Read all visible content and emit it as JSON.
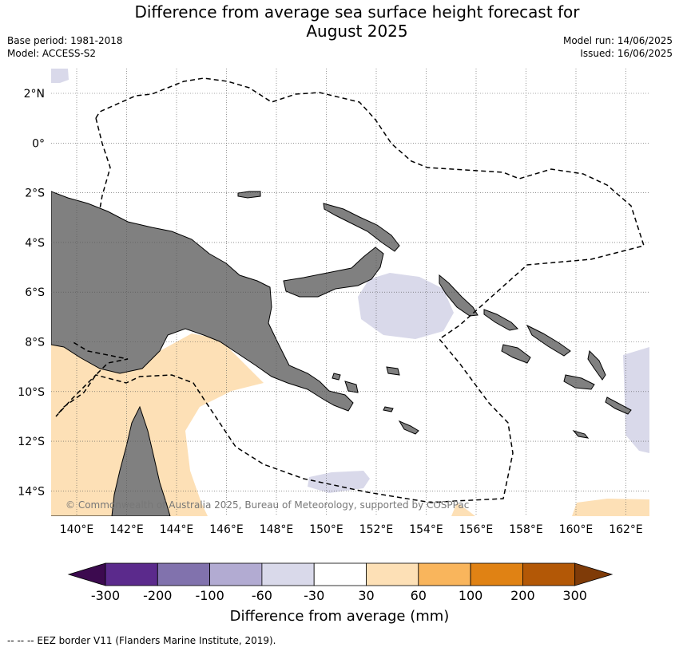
{
  "title_line1": "Difference from average sea surface height forecast for",
  "title_line2": "August 2025",
  "base_period": "Base period: 1981-2018",
  "model": "Model: ACCESS-S2",
  "model_run": "Model run: 14/06/2025",
  "issued": "Issued: 16/06/2025",
  "copyright": "© Commonwealth of Australia 2025, Bureau of Meteorology, supported by COSPPac",
  "footnote": "-- -- -- EEZ border V11 (Flanders Marine Institute, 2019).",
  "lat_labels": [
    "2°N",
    "0°",
    "2°S",
    "4°S",
    "6°S",
    "8°S",
    "10°S",
    "12°S",
    "14°S"
  ],
  "lon_labels": [
    "140°E",
    "142°E",
    "144°E",
    "146°E",
    "148°E",
    "150°E",
    "152°E",
    "154°E",
    "156°E",
    "158°E",
    "160°E",
    "162°E"
  ],
  "colorbar": {
    "title": "Difference from average (mm)",
    "ticks": [
      "-300",
      "-200",
      "-100",
      "-60",
      "-30",
      "30",
      "60",
      "100",
      "200",
      "300"
    ],
    "colors": [
      "#3c0a4f",
      "#5b2a8c",
      "#8172ad",
      "#b2abd2",
      "#d9d9ea",
      "#ffffff",
      "#fde0b6",
      "#f9b55c",
      "#e08214",
      "#b35806",
      "#7f3b08"
    ]
  },
  "colors": {
    "land": "#808080",
    "positive": "#fde0b6",
    "negative": "#d9d9ea"
  }
}
